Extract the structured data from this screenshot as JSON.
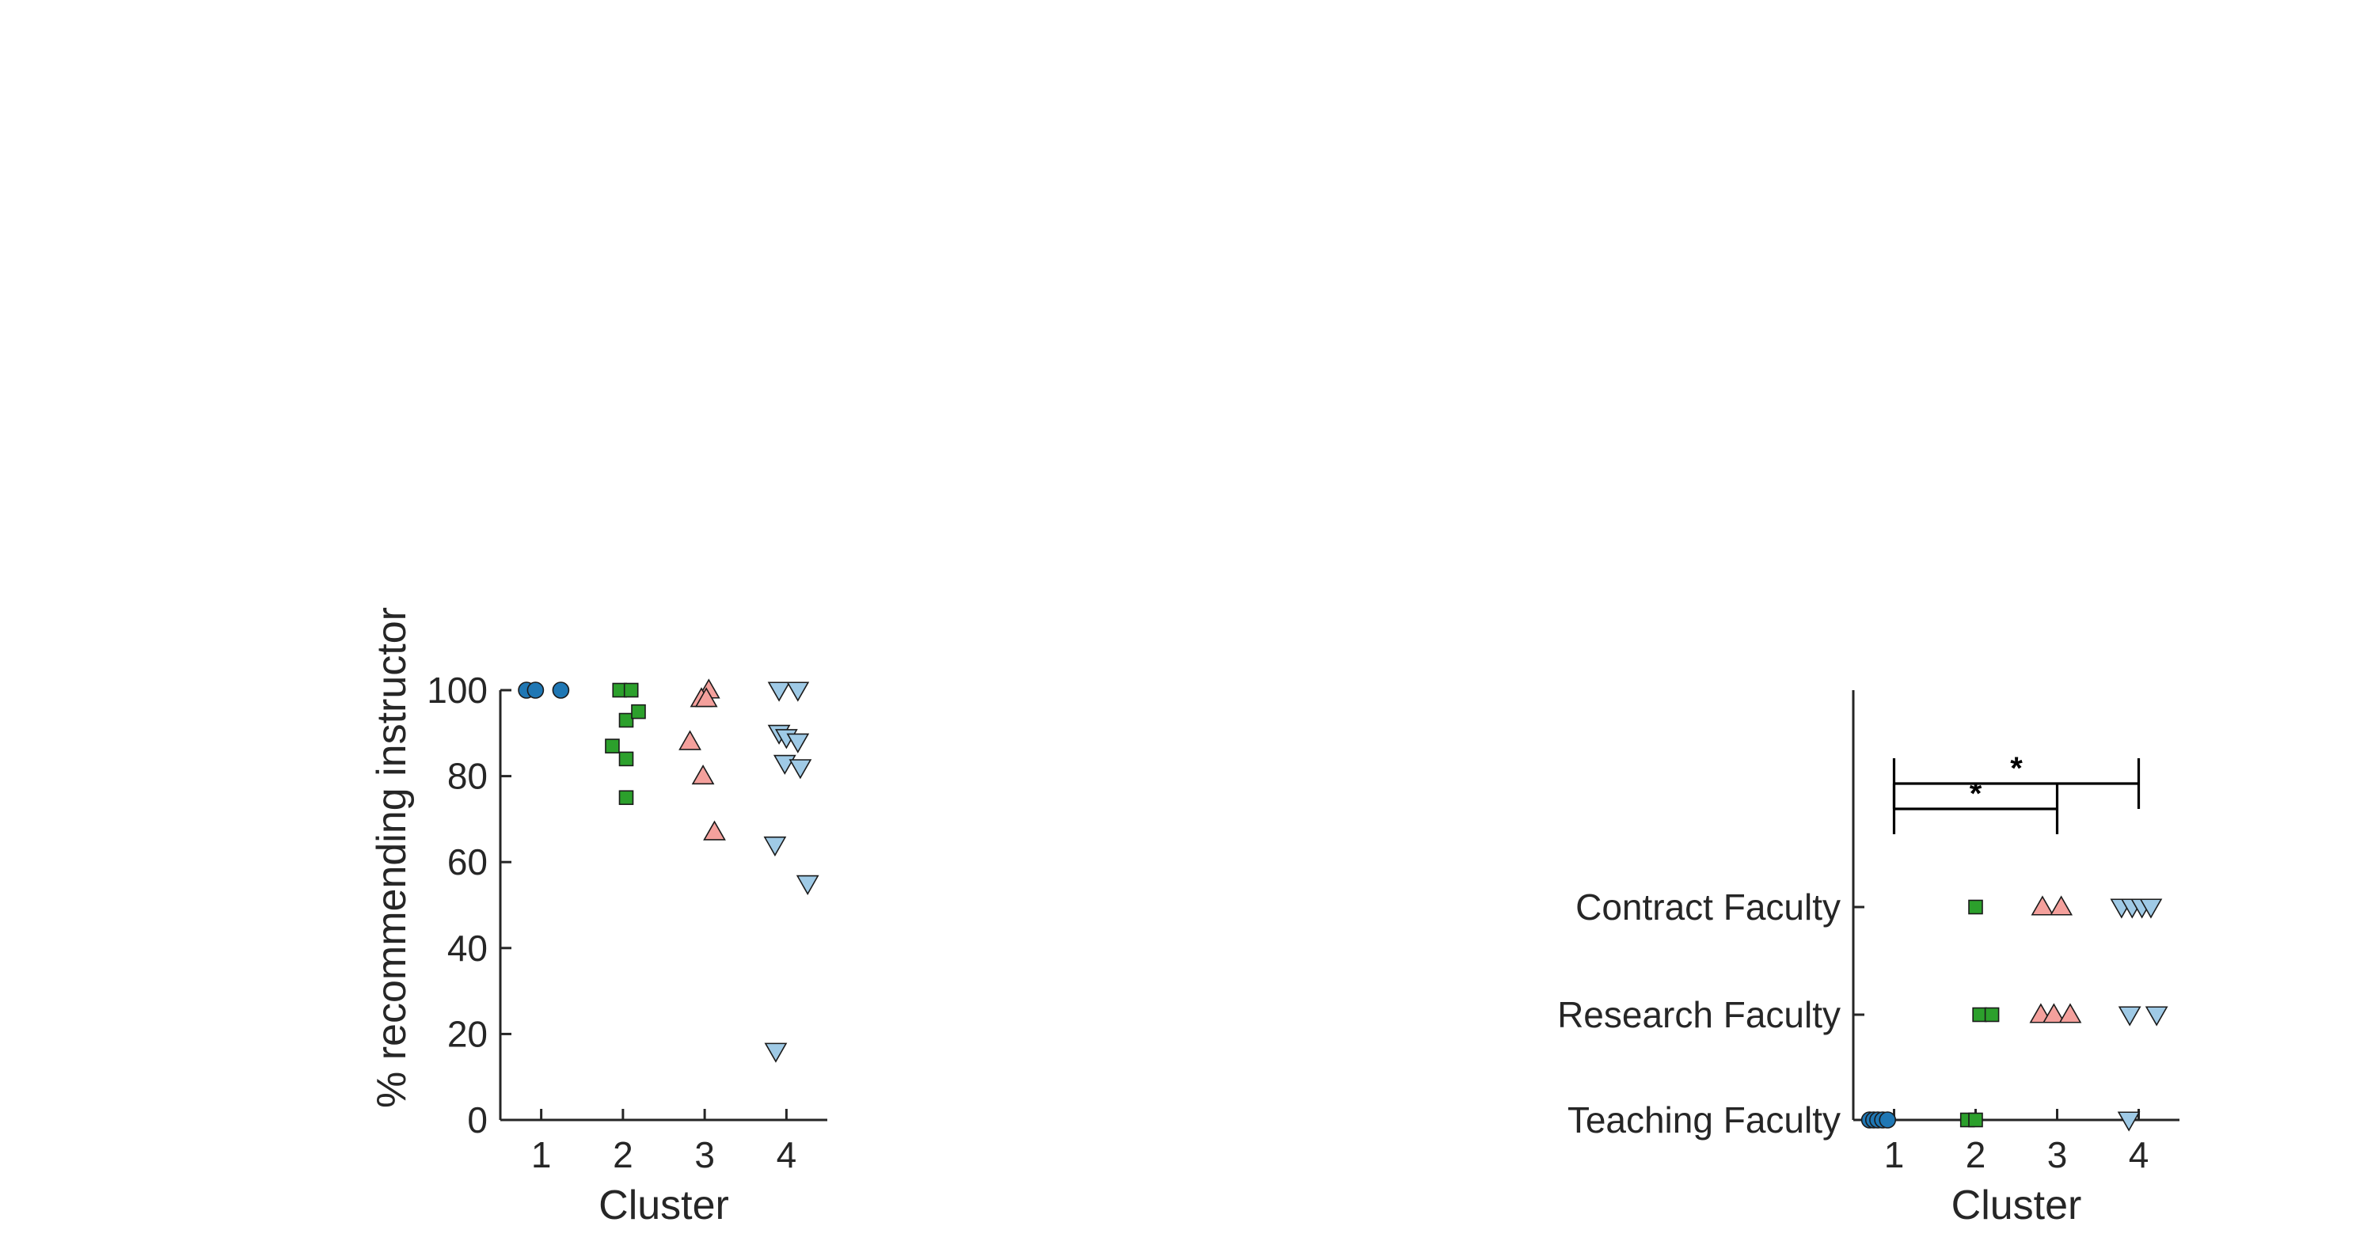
{
  "colors": {
    "cluster1": "#1f77b4",
    "cluster2": "#2ca02c",
    "cluster3": "#f4a09c",
    "cluster4": "#9fcae6",
    "marker_edge": "#1a1a1a",
    "axis": "#262626"
  },
  "chart_data": [
    {
      "type": "scatter",
      "title": "",
      "xlabel": "Cluster",
      "ylabel": "% recommending instructor",
      "xlim": [
        0.5,
        4.5
      ],
      "ylim": [
        0,
        100
      ],
      "xticks": [
        "1",
        "2",
        "3",
        "4"
      ],
      "yticks": [
        "0",
        "20",
        "40",
        "60",
        "80",
        "100"
      ],
      "grid": false,
      "series": [
        {
          "cluster": 1,
          "marker": "circle",
          "points": [
            [
              0.82,
              100
            ],
            [
              0.93,
              100
            ],
            [
              1.24,
              100
            ]
          ]
        },
        {
          "cluster": 2,
          "marker": "square",
          "points": [
            [
              1.96,
              100
            ],
            [
              2.1,
              100
            ],
            [
              2.04,
              93
            ],
            [
              2.19,
              95
            ],
            [
              1.87,
              87
            ],
            [
              2.04,
              84
            ],
            [
              2.04,
              75
            ]
          ]
        },
        {
          "cluster": 3,
          "marker": "triangle-up",
          "points": [
            [
              3.05,
              100
            ],
            [
              2.96,
              98
            ],
            [
              3.02,
              98
            ],
            [
              2.82,
              88
            ],
            [
              2.98,
              80
            ],
            [
              3.12,
              67
            ]
          ]
        },
        {
          "cluster": 4,
          "marker": "triangle-down",
          "points": [
            [
              3.91,
              100
            ],
            [
              4.14,
              100
            ],
            [
              3.91,
              90
            ],
            [
              4.0,
              89
            ],
            [
              4.14,
              88
            ],
            [
              3.98,
              83
            ],
            [
              4.17,
              82
            ],
            [
              3.86,
              64
            ],
            [
              4.26,
              55
            ],
            [
              3.87,
              16
            ]
          ]
        }
      ]
    },
    {
      "type": "scatter",
      "title": "",
      "xlabel": "Cluster",
      "ylabel": "",
      "xlim": [
        0.5,
        4.5
      ],
      "xticks": [
        "1",
        "2",
        "3",
        "4"
      ],
      "categories": [
        "Teaching Faculty",
        "Research Faculty",
        "Contract Faculty"
      ],
      "grid": false,
      "series": [
        {
          "cluster": 1,
          "marker": "circle",
          "points": [
            [
              0.7,
              "Teaching Faculty"
            ],
            [
              0.75,
              "Teaching Faculty"
            ],
            [
              0.8,
              "Teaching Faculty"
            ],
            [
              0.86,
              "Teaching Faculty"
            ],
            [
              0.92,
              "Teaching Faculty"
            ]
          ]
        },
        {
          "cluster": 2,
          "marker": "square",
          "points": [
            [
              1.9,
              "Teaching Faculty"
            ],
            [
              2.0,
              "Teaching Faculty"
            ],
            [
              2.0,
              "Contract Faculty"
            ],
            [
              2.05,
              "Research Faculty"
            ],
            [
              2.2,
              "Research Faculty"
            ]
          ]
        },
        {
          "cluster": 3,
          "marker": "triangle-up",
          "points": [
            [
              2.82,
              "Contract Faculty"
            ],
            [
              3.05,
              "Contract Faculty"
            ],
            [
              2.8,
              "Research Faculty"
            ],
            [
              2.96,
              "Research Faculty"
            ],
            [
              3.16,
              "Research Faculty"
            ]
          ]
        },
        {
          "cluster": 4,
          "marker": "triangle-down",
          "points": [
            [
              3.79,
              "Contract Faculty"
            ],
            [
              3.92,
              "Contract Faculty"
            ],
            [
              4.04,
              "Contract Faculty"
            ],
            [
              4.15,
              "Contract Faculty"
            ],
            [
              3.89,
              "Research Faculty"
            ],
            [
              4.22,
              "Research Faculty"
            ],
            [
              3.88,
              "Teaching Faculty"
            ]
          ]
        }
      ],
      "significance": [
        {
          "from": 1,
          "to": 3,
          "label": "*"
        },
        {
          "from": 1,
          "to": 4,
          "label": "*"
        }
      ]
    }
  ]
}
